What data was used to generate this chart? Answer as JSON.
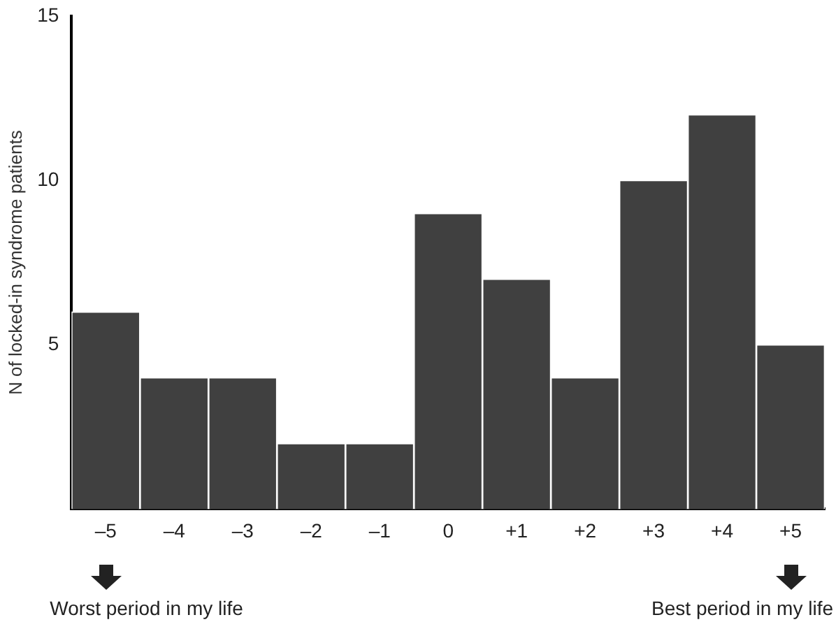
{
  "chart_data": {
    "type": "bar",
    "ylabel": "N of locked-in syndrome patients",
    "categories": [
      "–5",
      "–4",
      "–3",
      "–2",
      "–1",
      "0",
      "+1",
      "+2",
      "+3",
      "+4",
      "+5"
    ],
    "values": [
      6,
      4,
      4,
      2,
      2,
      9,
      7,
      4,
      10,
      12,
      5
    ],
    "color": "#404040",
    "ylim": [
      0,
      15
    ],
    "yticks": [
      5,
      10,
      15
    ],
    "grid": false,
    "legend": false,
    "annotations": [
      "Worst period in my life",
      "Best period in my life"
    ]
  }
}
